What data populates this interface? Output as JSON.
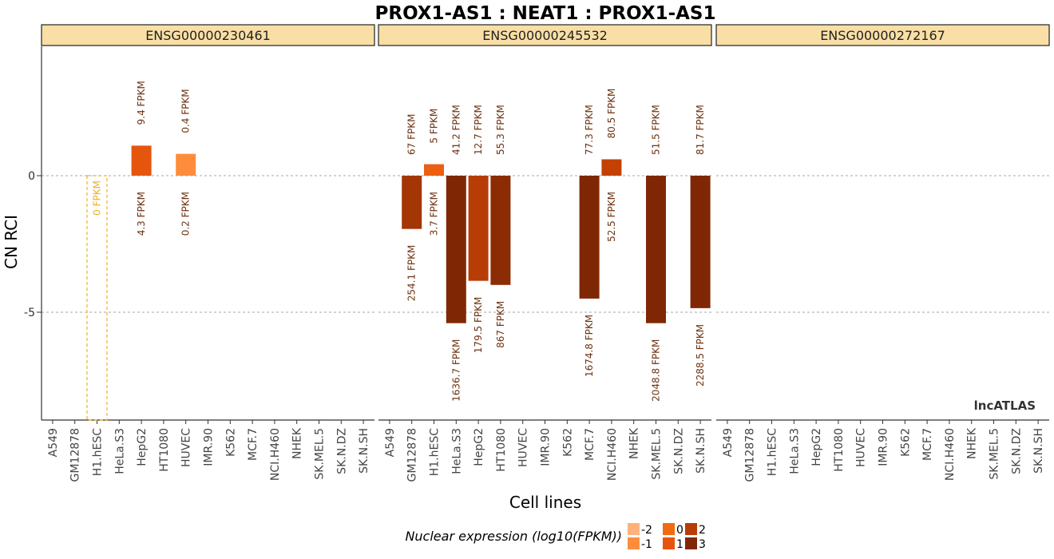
{
  "chart_data": {
    "type": "bar",
    "title": "PROX1-AS1 : NEAT1 : PROX1-AS1",
    "xlabel": "Cell lines",
    "ylabel": "CN RCI",
    "watermark": "lncATLAS",
    "ylim": [
      -9,
      4.6
    ],
    "yticks": [
      0,
      -5
    ],
    "ytick_labels": [
      "0",
      "-5"
    ],
    "grid": "horizontal dashed at y ticks",
    "categories": [
      "A549",
      "GM12878",
      "H1.hESC",
      "HeLa.S3",
      "HepG2",
      "HT1080",
      "HUVEC",
      "IMR.90",
      "K562",
      "MCF.7",
      "NCI.H460",
      "NHEK",
      "SK.MEL.5",
      "SK.N.DZ",
      "SK.N.SH"
    ],
    "legend": {
      "title": "Nuclear expression (log10(FPKM))",
      "position": "bottom",
      "entries": [
        {
          "label": "-2",
          "color": "#fdb27c"
        },
        {
          "label": "-1",
          "color": "#fd8d3c"
        },
        {
          "label": "0",
          "color": "#f16913"
        },
        {
          "label": "1",
          "color": "#e6550d"
        },
        {
          "label": "2",
          "color": "#b83c06"
        },
        {
          "label": "3",
          "color": "#7f2704"
        }
      ]
    },
    "panels": [
      {
        "name": "ENSG00000230461",
        "bars": [
          {
            "category": "H1.hESC",
            "value": 0,
            "cyto": "",
            "nuc": "0 FPKM",
            "color": "#f2b01e",
            "empty": true
          },
          {
            "category": "HepG2",
            "value": 1.1,
            "cyto": "9.4 FPKM",
            "nuc": "4.3 FPKM",
            "color": "#e6550d"
          },
          {
            "category": "HUVEC",
            "value": 0.8,
            "cyto": "0.4 FPKM",
            "nuc": "0.2 FPKM",
            "color": "#fd8d3c"
          }
        ]
      },
      {
        "name": "ENSG00000245532",
        "bars": [
          {
            "category": "GM12878",
            "value": -1.95,
            "cyto": "67 FPKM",
            "nuc": "254.1 FPKM",
            "color": "#a33604"
          },
          {
            "category": "H1.hESC",
            "value": 0.42,
            "cyto": "5 FPKM",
            "nuc": "3.7 FPKM",
            "color": "#ec5f10"
          },
          {
            "category": "HeLa.S3",
            "value": -5.4,
            "cyto": "41.2 FPKM",
            "nuc": "1636.7 FPKM",
            "color": "#7f2704"
          },
          {
            "category": "HepG2",
            "value": -3.85,
            "cyto": "12.7 FPKM",
            "nuc": "179.5 FPKM",
            "color": "#b83c06"
          },
          {
            "category": "HT1080",
            "value": -4.0,
            "cyto": "55.3 FPKM",
            "nuc": "867 FPKM",
            "color": "#8c2c04"
          },
          {
            "category": "MCF.7",
            "value": -4.5,
            "cyto": "77.3 FPKM",
            "nuc": "1674.8 FPKM",
            "color": "#7f2704"
          },
          {
            "category": "NCI.H460",
            "value": 0.6,
            "cyto": "80.5 FPKM",
            "nuc": "52.5 FPKM",
            "color": "#c44105"
          },
          {
            "category": "SK.MEL.5",
            "value": -5.4,
            "cyto": "51.5 FPKM",
            "nuc": "2048.8 FPKM",
            "color": "#7f2704"
          },
          {
            "category": "SK.N.SH",
            "value": -4.85,
            "cyto": "81.7 FPKM",
            "nuc": "2288.5 FPKM",
            "color": "#7f2704"
          }
        ]
      },
      {
        "name": "ENSG00000272167",
        "bars": []
      }
    ]
  }
}
